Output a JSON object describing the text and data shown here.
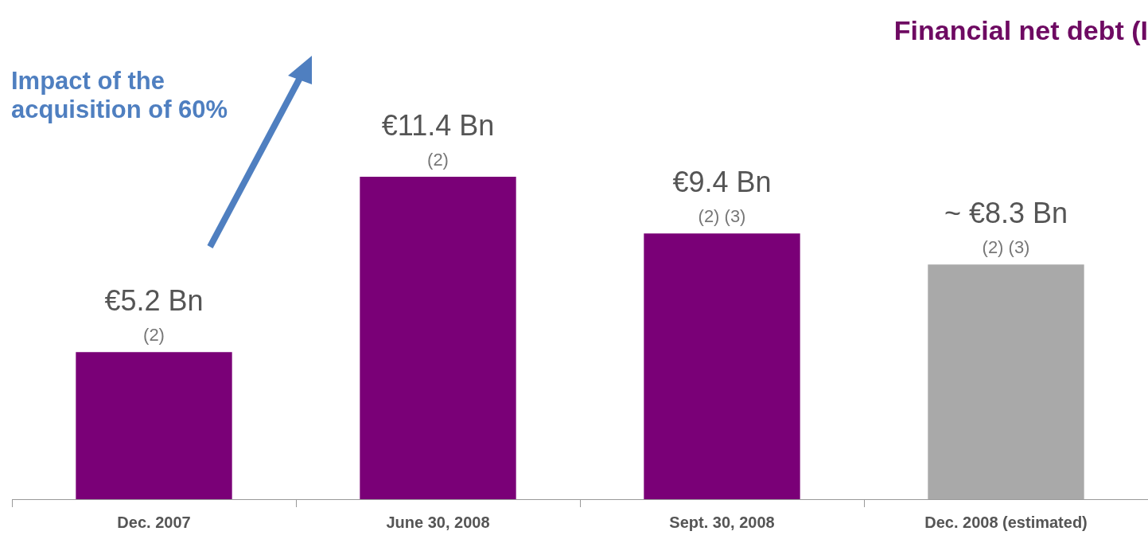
{
  "chart_data": {
    "type": "bar",
    "title": "Financial net debt (I",
    "categories": [
      "Dec. 2007",
      "June 30, 2008",
      "Sept. 30, 2008",
      "Dec. 2008 (estimated)"
    ],
    "values": [
      5.2,
      11.4,
      9.4,
      8.3
    ],
    "colors": [
      "#7a0077",
      "#7a0077",
      "#7a0077",
      "#a9a9a9"
    ],
    "value_labels": [
      "€5.2 Bn",
      "€11.4 Bn",
      "€9.4 Bn",
      "~ €8.3 Bn"
    ],
    "annotations": [
      "Impact of the acquisition of 60%",
      {
        "text": "(2)",
        "x": "Dec. 2007",
        "y": 5.2
      },
      {
        "text": "(2)",
        "x": "June 30, 2008",
        "y": 11.4
      },
      {
        "text": "(2) (3)",
        "x": "Sept. 30, 2008",
        "y": 9.4
      },
      {
        "text": "(2) (3)",
        "x": "Dec. 2008 (estimated)",
        "y": 8.3
      }
    ],
    "grid": false,
    "legend": false
  }
}
